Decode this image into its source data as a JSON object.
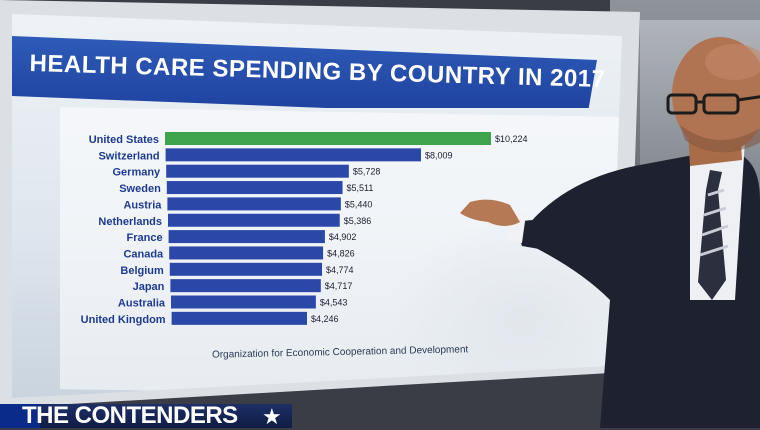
{
  "title": "HEALTH CARE SPENDING BY COUNTRY IN 2017",
  "source": "Organization for Economic Cooperation and Development",
  "show_name": "THE CONTENDERS",
  "colors": {
    "highlight": "#3fa34d",
    "bar": "#2b47a8",
    "banner": "#2a52b3"
  },
  "chart_data": {
    "type": "bar",
    "orientation": "horizontal",
    "categories": [
      "United States",
      "Switzerland",
      "Germany",
      "Sweden",
      "Austria",
      "Netherlands",
      "France",
      "Canada",
      "Belgium",
      "Japan",
      "Australia",
      "United Kingdom"
    ],
    "values": [
      10224,
      8009,
      5728,
      5511,
      5440,
      5386,
      4902,
      4826,
      4774,
      4717,
      4543,
      4246
    ],
    "value_labels": [
      "$10,224",
      "$8,009",
      "$5,728",
      "$5,511",
      "$5,440",
      "$5,386",
      "$4,902",
      "$4,826",
      "$4,774",
      "$4,717",
      "$4,543",
      "$4,246"
    ],
    "highlight_index": 0,
    "title": "HEALTH CARE SPENDING BY COUNTRY IN 2017"
  }
}
